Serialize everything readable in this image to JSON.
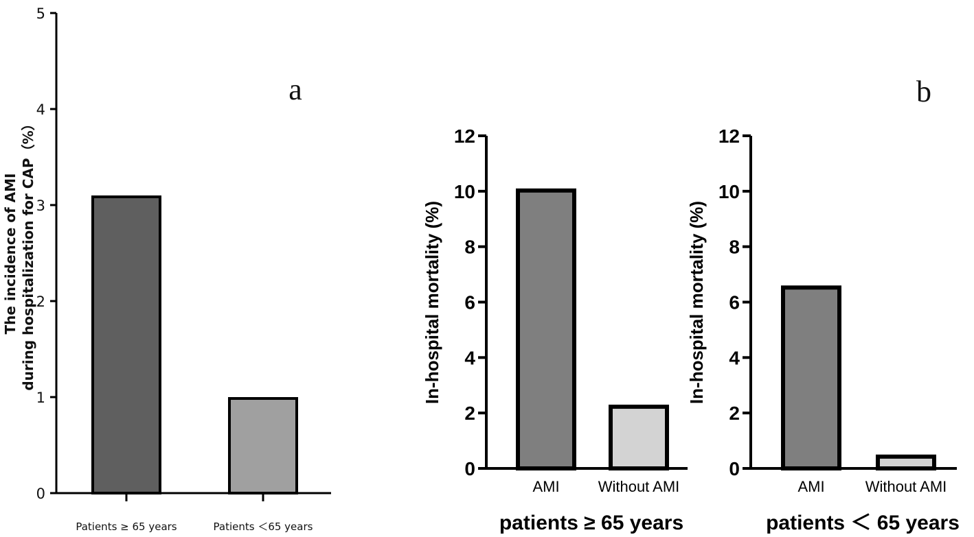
{
  "chart_data": [
    {
      "id": "a",
      "panel_label": "a",
      "type": "bar",
      "ylabel_line1": "The incidence of AMI",
      "ylabel_line2": "during hospitalization for CAP（%）",
      "ylim": [
        0,
        5
      ],
      "yticks": [
        "0",
        "1",
        "2",
        "3",
        "4",
        "5"
      ],
      "categories": [
        "Patients ≥ 65 years",
        "Patients ＜65 years"
      ],
      "values": [
        3.1,
        1.0
      ],
      "colors": [
        "#5f5f5f",
        "#a0a0a0"
      ]
    },
    {
      "id": "b1",
      "panel_label": "b",
      "type": "bar",
      "ylabel": "In-hospital mortality (%)",
      "xlabel": "patients ≥ 65 years",
      "ylim": [
        0,
        12
      ],
      "yticks": [
        "0",
        "2",
        "4",
        "6",
        "8",
        "10",
        "12"
      ],
      "categories": [
        "AMI",
        "Without AMI"
      ],
      "values": [
        10.1,
        2.3
      ],
      "colors": [
        "#7f7f7f",
        "#d3d3d3"
      ]
    },
    {
      "id": "b2",
      "type": "bar",
      "ylabel": "In-hospital mortality (%)",
      "xlabel": "patients ＜ 65 years",
      "ylim": [
        0,
        12
      ],
      "yticks": [
        "0",
        "2",
        "4",
        "6",
        "8",
        "10",
        "12"
      ],
      "categories": [
        "AMI",
        "Without AMI"
      ],
      "values": [
        6.6,
        0.5
      ],
      "colors": [
        "#7f7f7f",
        "#d3d3d3"
      ]
    }
  ]
}
